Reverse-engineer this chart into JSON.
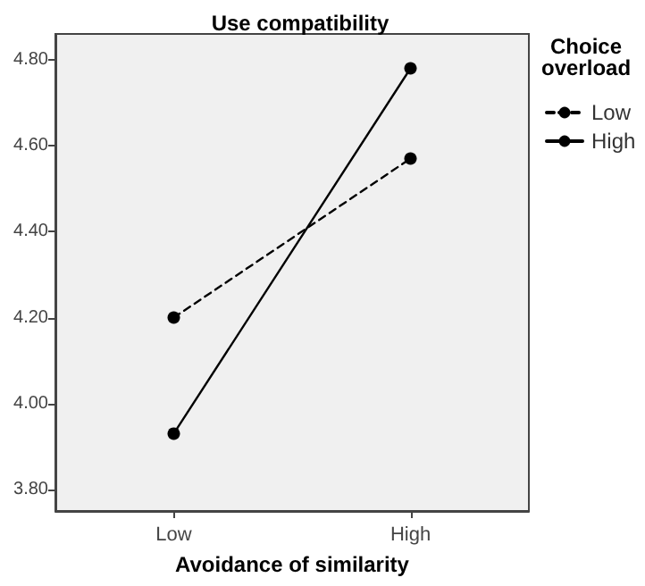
{
  "chart_data": {
    "type": "line",
    "title": "Use compatibility",
    "xlabel": "Avoidance of similarity",
    "legend_title": "Choice overload",
    "categories": [
      "Low",
      "High"
    ],
    "series": [
      {
        "name": "Low",
        "color": "#000000",
        "values": [
          4.2,
          4.57
        ],
        "line_style": "dashed"
      },
      {
        "name": "High",
        "color": "#000000",
        "values": [
          3.93,
          4.78
        ],
        "line_style": "solid"
      }
    ],
    "ylim": [
      3.75,
      4.86
    ],
    "yticks": [
      {
        "value": 3.8,
        "label": "3.80"
      },
      {
        "value": 4.0,
        "label": "4.00"
      },
      {
        "value": 4.2,
        "label": "4.20"
      },
      {
        "value": 4.4,
        "label": "4.40"
      },
      {
        "value": 4.6,
        "label": "4.60"
      },
      {
        "value": 4.8,
        "label": "4.80"
      }
    ],
    "grid": false,
    "legend": "top right",
    "marker": "circle"
  }
}
